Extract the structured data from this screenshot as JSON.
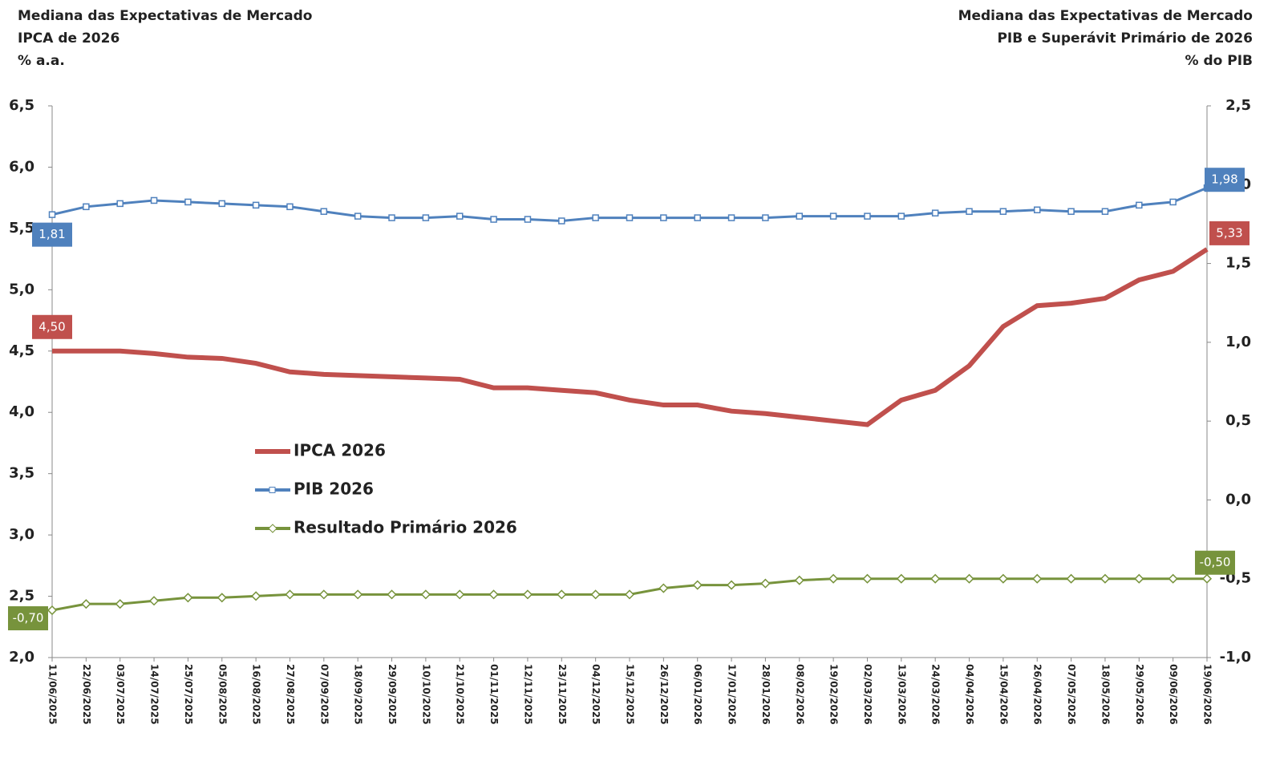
{
  "chart_data": {
    "type": "line",
    "title_left": [
      "Mediana das Expectativas de Mercado",
      "IPCA de 2026",
      "% a.a."
    ],
    "title_right": [
      "Mediana das Expectativas de Mercado",
      "PIB e Superávit Primário de 2026",
      "% do PIB"
    ],
    "categories": [
      "11/06/2025",
      "22/06/2025",
      "03/07/2025",
      "14/07/2025",
      "25/07/2025",
      "05/08/2025",
      "16/08/2025",
      "27/08/2025",
      "07/09/2025",
      "18/09/2025",
      "29/09/2025",
      "10/10/2025",
      "21/10/2025",
      "01/11/2025",
      "12/11/2025",
      "23/11/2025",
      "04/12/2025",
      "15/12/2025",
      "26/12/2025",
      "06/01/2026",
      "17/01/2026",
      "28/01/2026",
      "08/02/2026",
      "19/02/2026",
      "02/03/2026",
      "13/03/2026",
      "24/03/2026",
      "04/04/2026",
      "15/04/2026",
      "26/04/2026",
      "07/05/2026",
      "18/05/2026",
      "29/05/2026",
      "09/06/2026",
      "19/06/2026"
    ],
    "series": [
      {
        "name": "IPCA 2026",
        "color": "#c0504d",
        "axis": "y",
        "marker": "none",
        "values": [
          4.5,
          4.5,
          4.5,
          4.48,
          4.45,
          4.44,
          4.4,
          4.33,
          4.31,
          4.3,
          4.29,
          4.28,
          4.27,
          4.2,
          4.2,
          4.18,
          4.16,
          4.1,
          4.06,
          4.06,
          4.01,
          3.99,
          3.96,
          3.93,
          3.9,
          4.1,
          4.18,
          4.38,
          4.7,
          4.87,
          4.89,
          4.93,
          5.08,
          5.15,
          5.33
        ],
        "value_labels": [
          "4,50",
          null,
          null,
          null,
          null,
          null,
          null,
          null,
          null,
          null,
          null,
          null,
          null,
          null,
          null,
          null,
          null,
          null,
          null,
          null,
          null,
          null,
          null,
          null,
          null,
          null,
          null,
          null,
          null,
          null,
          null,
          null,
          null,
          null,
          "5,33"
        ]
      },
      {
        "name": "PIB 2026",
        "color": "#4f81bd",
        "axis": "y2",
        "marker": "square",
        "values": [
          1.81,
          1.86,
          1.88,
          1.9,
          1.89,
          1.88,
          1.87,
          1.86,
          1.83,
          1.8,
          1.79,
          1.79,
          1.8,
          1.78,
          1.78,
          1.77,
          1.79,
          1.79,
          1.79,
          1.79,
          1.79,
          1.79,
          1.8,
          1.8,
          1.8,
          1.8,
          1.82,
          1.83,
          1.83,
          1.84,
          1.83,
          1.83,
          1.87,
          1.89,
          1.98
        ],
        "value_labels": [
          "1,81",
          null,
          null,
          null,
          null,
          null,
          null,
          null,
          null,
          null,
          null,
          null,
          null,
          null,
          null,
          null,
          null,
          null,
          null,
          null,
          null,
          null,
          null,
          null,
          null,
          null,
          null,
          null,
          null,
          null,
          null,
          null,
          null,
          null,
          "1,98"
        ]
      },
      {
        "name": "Resultado Primário 2026",
        "color": "#77933c",
        "axis": "y2",
        "marker": "diamond",
        "values": [
          -0.7,
          -0.66,
          -0.66,
          -0.64,
          -0.62,
          -0.62,
          -0.61,
          -0.6,
          -0.6,
          -0.6,
          -0.6,
          -0.6,
          -0.6,
          -0.6,
          -0.6,
          -0.6,
          -0.6,
          -0.6,
          -0.56,
          -0.54,
          -0.54,
          -0.53,
          -0.51,
          -0.5,
          -0.5,
          -0.5,
          -0.5,
          -0.5,
          -0.5,
          -0.5,
          -0.5,
          -0.5,
          -0.5,
          -0.5,
          -0.5
        ],
        "value_labels": [
          "-0,70",
          null,
          null,
          null,
          null,
          null,
          null,
          null,
          null,
          null,
          null,
          null,
          null,
          null,
          null,
          null,
          null,
          null,
          null,
          null,
          null,
          null,
          null,
          null,
          null,
          null,
          null,
          null,
          null,
          null,
          null,
          null,
          null,
          null,
          "-0,50"
        ]
      }
    ],
    "ylim": [
      2.0,
      6.5
    ],
    "yticks": [
      {
        "value": 2.0,
        "label": "2,0"
      },
      {
        "value": 2.5,
        "label": "2,5"
      },
      {
        "value": 3.0,
        "label": "3,0"
      },
      {
        "value": 3.5,
        "label": "3,5"
      },
      {
        "value": 4.0,
        "label": "4,0"
      },
      {
        "value": 4.5,
        "label": "4,5"
      },
      {
        "value": 5.0,
        "label": "5,0"
      },
      {
        "value": 5.5,
        "label": "5,5"
      },
      {
        "value": 6.0,
        "label": "6,0"
      },
      {
        "value": 6.5,
        "label": "6,5"
      }
    ],
    "y2lim": [
      -1.0,
      2.5
    ],
    "y2ticks": [
      {
        "value": -1.0,
        "label": "-1,0"
      },
      {
        "value": -0.5,
        "label": "-0,5"
      },
      {
        "value": 0.0,
        "label": "0,0"
      },
      {
        "value": 0.5,
        "label": "0,5"
      },
      {
        "value": 1.0,
        "label": "1,0"
      },
      {
        "value": 1.5,
        "label": "1,5"
      },
      {
        "value": 2.0,
        "label": "2,0"
      },
      {
        "value": 2.5,
        "label": "2,5"
      }
    ],
    "grid": false,
    "legend": "center-left"
  }
}
